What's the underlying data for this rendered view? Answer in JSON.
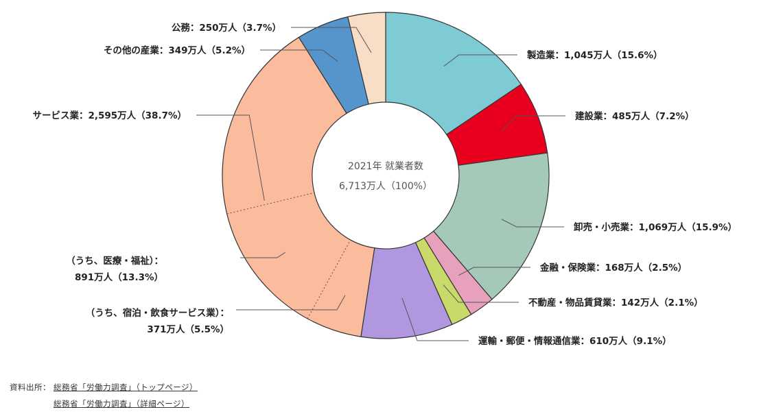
{
  "chart_data": {
    "type": "pie",
    "style": "donut",
    "center_title": "2021年 就業者数",
    "center_total": "6,713万人（100%）",
    "slices": [
      {
        "id": "seizo",
        "value": 1045,
        "pct": 15.6,
        "color": "#7ECBD6",
        "label": "製造業：1,045万人（15.6%）"
      },
      {
        "id": "kensetsu",
        "value": 485,
        "pct": 7.2,
        "color": "#E8001E",
        "label": "建設業：485万人（7.2%）"
      },
      {
        "id": "oroshi",
        "value": 1069,
        "pct": 15.9,
        "color": "#A5C9B8",
        "label": "卸売・小売業：1,069万人（15.9%）"
      },
      {
        "id": "kinyu",
        "value": 168,
        "pct": 2.5,
        "color": "#E8A1BC",
        "label": "金融・保険業：168万人（2.5%）"
      },
      {
        "id": "fudosan",
        "value": 142,
        "pct": 2.1,
        "color": "#C9DA6A",
        "label": "不動産・物品賃貸業：142万人（2.1%）"
      },
      {
        "id": "unyu",
        "value": 610,
        "pct": 9.1,
        "color": "#B197E0",
        "label": "運輸・郵便・情報通信業：610万人（9.1%）"
      },
      {
        "id": "service",
        "value": 2595,
        "pct": 38.7,
        "color": "#FBBB9D",
        "label": "サービス業：2,595万人（38.7%）"
      },
      {
        "id": "sonota",
        "value": 349,
        "pct": 5.2,
        "color": "#5695CB",
        "label": "その他の産業：349万人（5.2%）"
      },
      {
        "id": "komu",
        "value": 250,
        "pct": 3.7,
        "color": "#F8DEC6",
        "label": "公務：250万人（3.7%）"
      }
    ],
    "sub_slices": [
      {
        "id": "shukuhaku",
        "value": 371,
        "pct": 5.5,
        "label_line1": "（うち、宿泊・飲食サービス業）：",
        "label_line2": "371万人（5.5%）"
      },
      {
        "id": "iryo",
        "value": 891,
        "pct": 13.3,
        "label_line1": "（うち、医療・福祉）：",
        "label_line2": "891万人（13.3%）"
      }
    ]
  },
  "source": {
    "prefix": "資料出所：",
    "links": [
      "総務省「労働力調査」（トップページ）",
      "総務省「労働力調査」（詳細ページ）"
    ]
  }
}
